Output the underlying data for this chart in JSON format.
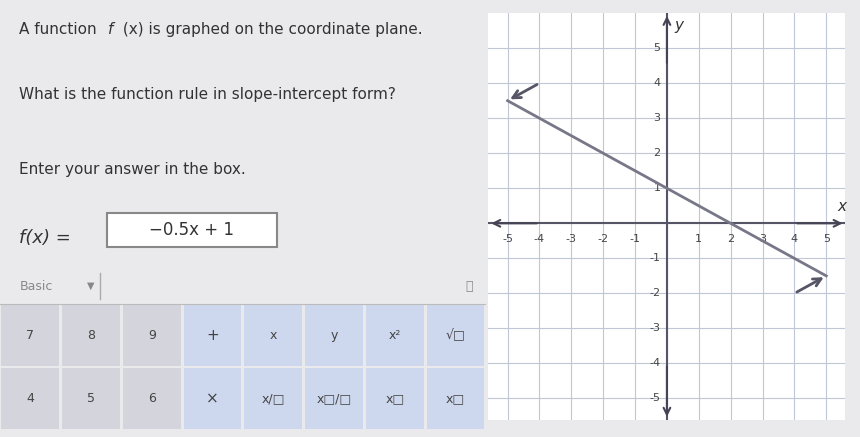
{
  "bg_color": "#eaeaec",
  "title_text": "A function f (x) is graphed on the coordinate plane.",
  "question_text": "What is the function rule in slope-intercept form?",
  "instruction_text": "Enter your answer in the box.",
  "answer_label": "f(x) =",
  "answer_value": "−0.5x + 1",
  "slope": -0.5,
  "intercept": 1,
  "x_range": [
    -5,
    5
  ],
  "y_range": [
    -5,
    5
  ],
  "grid_color": "#c0c8d8",
  "axis_color": "#555566",
  "line_color": "#777788",
  "keyboard_row1": [
    "7",
    "8",
    "9",
    "+",
    "x",
    "y",
    "x²",
    "√□"
  ],
  "keyboard_row2": [
    "4",
    "5",
    "6",
    "×",
    "x/□",
    "x□/□",
    "x□",
    "x□"
  ]
}
